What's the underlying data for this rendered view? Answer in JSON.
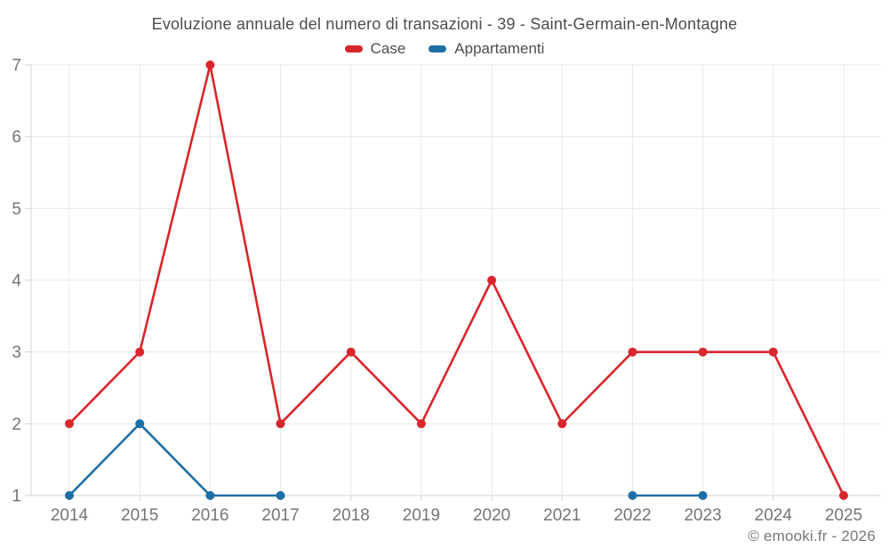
{
  "title": "Evoluzione annuale del numero di transazioni - 39 - Saint-Germain-en-Montagne",
  "footer": {
    "text": "© emooki.fr - 2026"
  },
  "colors": {
    "case_red": "#d8262c",
    "appartamenti_blue": "#1d6fa5",
    "grid": "#e8e8e8",
    "axis": "#d4d4d4",
    "tick_label": "#757575"
  },
  "chart_data": {
    "type": "line",
    "title": "Evoluzione annuale del numero di transazioni - 39 - Saint-Germain-en-Montagne",
    "categories": [
      "2014",
      "2015",
      "2016",
      "2017",
      "2018",
      "2019",
      "2020",
      "2021",
      "2022",
      "2023",
      "2024",
      "2025"
    ],
    "series": [
      {
        "name": "Case",
        "color": "#d8262c",
        "values": [
          2,
          3,
          7,
          2,
          3,
          2,
          4,
          2,
          3,
          3,
          3,
          1
        ]
      },
      {
        "name": "Appartamenti",
        "color": "#1d6fa5",
        "values": [
          1,
          2,
          1,
          1,
          null,
          null,
          null,
          null,
          1,
          1,
          null,
          null
        ]
      }
    ],
    "xlabel": "",
    "ylabel": "",
    "ylim": [
      1,
      7
    ],
    "yticks": [
      1,
      2,
      3,
      4,
      5,
      6,
      7
    ],
    "grid": true,
    "legend_position": "top",
    "markers": true
  }
}
